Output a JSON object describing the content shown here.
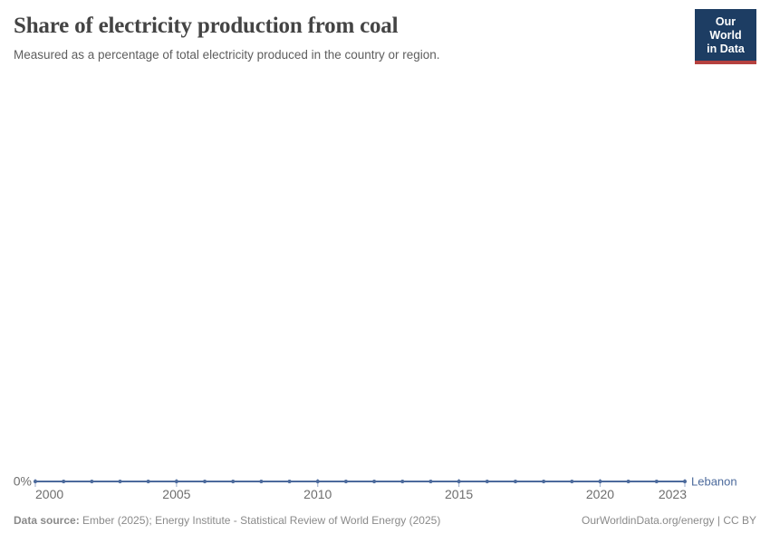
{
  "header": {
    "title": "Share of electricity production from coal",
    "subtitle": "Measured as a percentage of total electricity produced in the country or region.",
    "logo": {
      "line1": "Our World",
      "line2": "in Data",
      "bg_color": "#1d3d63",
      "accent_color": "#b5413f"
    }
  },
  "chart_data": {
    "type": "line",
    "title": "Share of electricity production from coal",
    "x": [
      2000,
      2001,
      2002,
      2003,
      2004,
      2005,
      2006,
      2007,
      2008,
      2009,
      2010,
      2011,
      2012,
      2013,
      2014,
      2015,
      2016,
      2017,
      2018,
      2019,
      2020,
      2021,
      2022,
      2023
    ],
    "series": [
      {
        "name": "Lebanon",
        "color": "#4C6A9C",
        "values": [
          0,
          0,
          0,
          0,
          0,
          0,
          0,
          0,
          0,
          0,
          0,
          0,
          0,
          0,
          0,
          0,
          0,
          0,
          0,
          0,
          0,
          0,
          0,
          0
        ]
      }
    ],
    "x_ticks": [
      2000,
      2005,
      2010,
      2015,
      2020,
      2023
    ],
    "x_tick_labels": [
      "2000",
      "2005",
      "2010",
      "2015",
      "2020",
      "2023"
    ],
    "y_tick_labels": [
      "0%"
    ],
    "unit": "%",
    "grid": false,
    "legend_position": "inline-right",
    "colors": {
      "line": "#4C6A9C",
      "tick": "#a9b8d1",
      "axis_label": "#6e6e6e"
    }
  },
  "footer": {
    "source_label": "Data source:",
    "source_text": " Ember (2025); Energy Institute - Statistical Review of World Energy (2025)",
    "credit": "OurWorldinData.org/energy | CC BY"
  }
}
